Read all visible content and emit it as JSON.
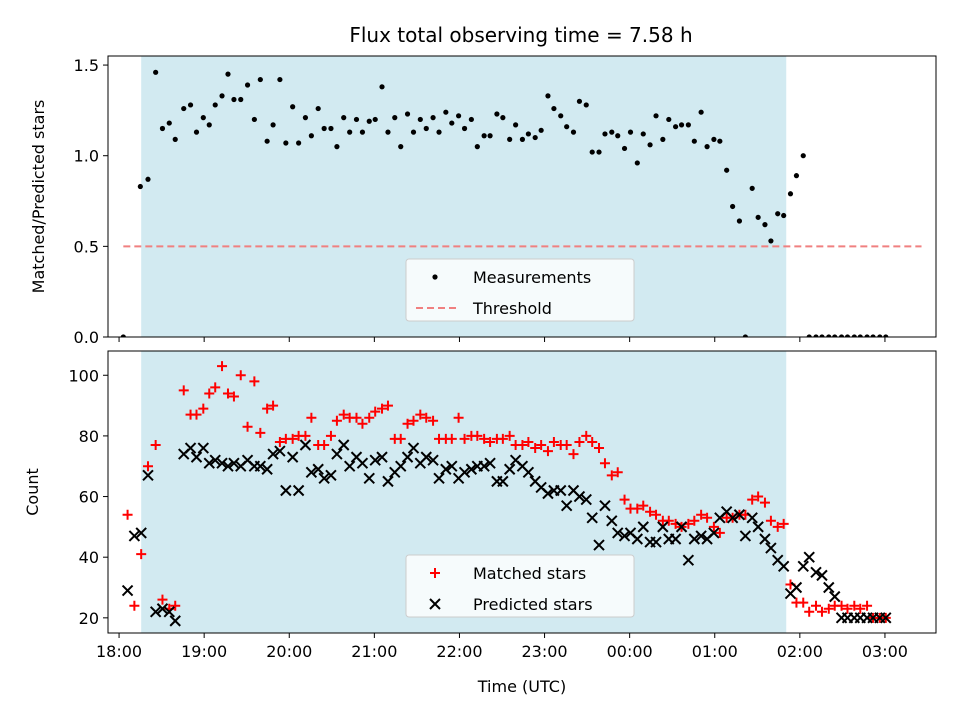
{
  "title": "Flux total observing time = 7.58 h",
  "chart_data": [
    {
      "type": "scatter",
      "ylabel": "Matched/Predicted stars",
      "ylim": [
        0,
        1.55
      ],
      "xlim_hours": [
        17.87,
        27.6
      ],
      "yticks": [
        0.0,
        0.5,
        1.0,
        1.5
      ],
      "ytick_labels": [
        "0.0",
        "0.5",
        "1.0",
        "1.5"
      ],
      "shaded_span_hours": [
        18.26,
        25.84
      ],
      "shaded_color": "#add8e6",
      "threshold": {
        "value": 0.5,
        "x_hours": [
          18.05,
          27.43
        ],
        "color": "#f08080"
      },
      "legend": {
        "placement": "lower center",
        "entries": [
          "Measurements",
          "Threshold"
        ]
      },
      "series": [
        {
          "name": "Measurements",
          "color": "#000000",
          "marker": "dot",
          "x_hours": [
            18.05,
            18.25,
            18.34,
            18.43,
            18.51,
            18.59,
            18.66,
            18.76,
            18.84,
            18.91,
            18.99,
            19.06,
            19.13,
            19.21,
            19.28,
            19.35,
            19.43,
            19.51,
            19.59,
            19.66,
            19.74,
            19.81,
            19.89,
            19.96,
            20.04,
            20.11,
            20.19,
            20.26,
            20.34,
            20.41,
            20.49,
            20.56,
            20.64,
            20.71,
            20.79,
            20.86,
            20.94,
            21.01,
            21.09,
            21.16,
            21.24,
            21.31,
            21.39,
            21.46,
            21.54,
            21.61,
            21.69,
            21.76,
            21.84,
            21.91,
            21.99,
            22.06,
            22.14,
            22.21,
            22.29,
            22.36,
            22.44,
            22.51,
            22.59,
            22.66,
            22.74,
            22.81,
            22.89,
            22.96,
            23.04,
            23.11,
            23.19,
            23.26,
            23.34,
            23.41,
            23.49,
            23.56,
            23.64,
            23.71,
            23.79,
            23.86,
            23.94,
            24.01,
            24.09,
            24.16,
            24.24,
            24.31,
            24.39,
            24.46,
            24.54,
            24.61,
            24.69,
            24.76,
            24.84,
            24.91,
            24.99,
            25.06,
            25.14,
            25.21,
            25.29,
            25.36,
            25.44,
            25.51,
            25.59,
            25.66,
            25.74,
            25.81,
            25.89,
            25.96,
            26.04,
            26.11,
            26.19,
            26.26,
            26.34,
            26.41,
            26.49,
            26.56,
            26.64,
            26.71,
            26.79,
            26.86,
            26.94,
            27.01
          ],
          "y": [
            0.0,
            0.83,
            0.87,
            1.46,
            1.15,
            1.18,
            1.09,
            1.26,
            1.28,
            1.13,
            1.21,
            1.17,
            1.28,
            1.33,
            1.45,
            1.31,
            1.31,
            1.39,
            1.2,
            1.42,
            1.08,
            1.17,
            1.42,
            1.07,
            1.27,
            1.07,
            1.21,
            1.11,
            1.26,
            1.15,
            1.15,
            1.05,
            1.21,
            1.13,
            1.2,
            1.13,
            1.19,
            1.2,
            1.38,
            1.13,
            1.21,
            1.05,
            1.23,
            1.13,
            1.2,
            1.15,
            1.21,
            1.13,
            1.24,
            1.18,
            1.22,
            1.15,
            1.2,
            1.05,
            1.11,
            1.11,
            1.23,
            1.21,
            1.09,
            1.17,
            1.09,
            1.12,
            1.1,
            1.14,
            1.33,
            1.26,
            1.22,
            1.16,
            1.13,
            1.3,
            1.28,
            1.02,
            1.02,
            1.12,
            1.13,
            1.11,
            1.04,
            1.13,
            0.96,
            1.12,
            1.06,
            1.22,
            1.09,
            1.2,
            1.16,
            1.17,
            1.17,
            1.08,
            1.24,
            1.05,
            1.09,
            1.08,
            0.92,
            0.72,
            0.64,
            0.0,
            0.82,
            0.66,
            0.62,
            0.53,
            0.68,
            0.67,
            0.79,
            0.89,
            1.0,
            0.0,
            0.0,
            0.0,
            0.0,
            0.0,
            0.0,
            0.0,
            0.0,
            0.0,
            0.0,
            0.0,
            0.0,
            0.0
          ]
        }
      ]
    },
    {
      "type": "scatter",
      "xlabel": "Time (UTC)",
      "ylabel": "Count",
      "ylim": [
        15,
        108
      ],
      "xlim_hours": [
        17.87,
        27.6
      ],
      "yticks": [
        20,
        40,
        60,
        80,
        100
      ],
      "ytick_labels": [
        "20",
        "40",
        "60",
        "80",
        "100"
      ],
      "xticks_hours": [
        18,
        19,
        20,
        21,
        22,
        23,
        24,
        25,
        26,
        27
      ],
      "xtick_labels": [
        "18:00",
        "19:00",
        "20:00",
        "21:00",
        "22:00",
        "23:00",
        "00:00",
        "01:00",
        "02:00",
        "03:00"
      ],
      "shaded_span_hours": [
        18.26,
        25.84
      ],
      "shaded_color": "#add8e6",
      "legend": {
        "placement": "lower center",
        "entries": [
          "Matched stars",
          "Predicted stars"
        ]
      },
      "series": [
        {
          "name": "Matched stars",
          "color": "#ff0000",
          "marker": "plus",
          "x_hours": [
            18.1,
            18.18,
            18.26,
            18.34,
            18.43,
            18.51,
            18.59,
            18.66,
            18.76,
            18.84,
            18.91,
            18.99,
            19.06,
            19.13,
            19.21,
            19.28,
            19.35,
            19.43,
            19.51,
            19.59,
            19.66,
            19.74,
            19.81,
            19.89,
            19.96,
            20.04,
            20.11,
            20.19,
            20.26,
            20.34,
            20.41,
            20.49,
            20.56,
            20.64,
            20.71,
            20.79,
            20.86,
            20.94,
            21.01,
            21.09,
            21.16,
            21.24,
            21.31,
            21.39,
            21.46,
            21.54,
            21.61,
            21.69,
            21.76,
            21.84,
            21.91,
            21.99,
            22.06,
            22.14,
            22.21,
            22.29,
            22.36,
            22.44,
            22.51,
            22.59,
            22.66,
            22.74,
            22.81,
            22.89,
            22.96,
            23.04,
            23.11,
            23.19,
            23.26,
            23.34,
            23.41,
            23.49,
            23.56,
            23.64,
            23.71,
            23.79,
            23.86,
            23.94,
            24.01,
            24.09,
            24.16,
            24.24,
            24.31,
            24.39,
            24.46,
            24.54,
            24.61,
            24.69,
            24.76,
            24.84,
            24.91,
            24.99,
            25.06,
            25.14,
            25.21,
            25.29,
            25.36,
            25.44,
            25.51,
            25.59,
            25.66,
            25.74,
            25.81,
            25.89,
            25.96,
            26.04,
            26.11,
            26.19,
            26.26,
            26.34,
            26.41,
            26.49,
            26.56,
            26.64,
            26.71,
            26.79,
            26.86,
            26.94,
            27.01
          ],
          "y": [
            54,
            24,
            41,
            70,
            77,
            26,
            23,
            24,
            95,
            87,
            87,
            89,
            94,
            96,
            103,
            94,
            93,
            100,
            83,
            98,
            81,
            89,
            90,
            78,
            79,
            79,
            80,
            80,
            86,
            77,
            77,
            80,
            85,
            87,
            86,
            86,
            84,
            86,
            88,
            89,
            90,
            79,
            79,
            84,
            85,
            87,
            86,
            85,
            79,
            79,
            79,
            86,
            79,
            80,
            80,
            79,
            78,
            79,
            79,
            80,
            77,
            77,
            78,
            76,
            77,
            75,
            78,
            77,
            77,
            74,
            78,
            80,
            78,
            76,
            71,
            67,
            68,
            59,
            56,
            56,
            57,
            55,
            54,
            52,
            52,
            51,
            50,
            51,
            52,
            54,
            53,
            50,
            48,
            53,
            53,
            54,
            54,
            59,
            60,
            58,
            52,
            50,
            51,
            31,
            25,
            25,
            22,
            24,
            22,
            23,
            24,
            24,
            23,
            24,
            23,
            24,
            20,
            20,
            20
          ]
        },
        {
          "name": "Predicted stars",
          "color": "#000000",
          "marker": "x",
          "x_hours": [
            18.1,
            18.18,
            18.26,
            18.34,
            18.43,
            18.51,
            18.59,
            18.66,
            18.76,
            18.84,
            18.91,
            18.99,
            19.06,
            19.13,
            19.21,
            19.28,
            19.35,
            19.43,
            19.51,
            19.59,
            19.66,
            19.74,
            19.81,
            19.89,
            19.96,
            20.04,
            20.11,
            20.19,
            20.26,
            20.34,
            20.41,
            20.49,
            20.56,
            20.64,
            20.71,
            20.79,
            20.86,
            20.94,
            21.01,
            21.09,
            21.16,
            21.24,
            21.31,
            21.39,
            21.46,
            21.54,
            21.61,
            21.69,
            21.76,
            21.84,
            21.91,
            21.99,
            22.06,
            22.14,
            22.21,
            22.29,
            22.36,
            22.44,
            22.51,
            22.59,
            22.66,
            22.74,
            22.81,
            22.89,
            22.96,
            23.04,
            23.11,
            23.19,
            23.26,
            23.34,
            23.41,
            23.49,
            23.56,
            23.64,
            23.71,
            23.79,
            23.86,
            23.94,
            24.01,
            24.09,
            24.16,
            24.24,
            24.31,
            24.39,
            24.46,
            24.54,
            24.61,
            24.69,
            24.76,
            24.84,
            24.91,
            24.99,
            25.06,
            25.14,
            25.21,
            25.29,
            25.36,
            25.44,
            25.51,
            25.59,
            25.66,
            25.74,
            25.81,
            25.89,
            25.96,
            26.04,
            26.11,
            26.19,
            26.26,
            26.34,
            26.41,
            26.49,
            26.56,
            26.64,
            26.71,
            26.79,
            26.86,
            26.94,
            27.01
          ],
          "y": [
            29,
            47,
            48,
            67,
            22,
            23,
            22,
            19,
            74,
            76,
            73,
            76,
            71,
            72,
            71,
            70,
            71,
            70,
            72,
            70,
            70,
            69,
            74,
            75,
            62,
            73,
            62,
            77,
            68,
            69,
            66,
            67,
            74,
            77,
            70,
            73,
            71,
            66,
            72,
            73,
            65,
            68,
            70,
            73,
            76,
            71,
            73,
            72,
            66,
            69,
            70,
            66,
            68,
            69,
            70,
            70,
            71,
            65,
            65,
            69,
            72,
            70,
            68,
            65,
            63,
            61,
            62,
            62,
            57,
            62,
            60,
            59,
            53,
            44,
            57,
            52,
            48,
            47,
            48,
            46,
            50,
            45,
            45,
            50,
            46,
            46,
            50,
            39,
            46,
            47,
            46,
            48,
            53,
            55,
            53,
            54,
            47,
            53,
            50,
            46,
            43,
            39,
            37,
            28,
            30,
            37,
            40,
            35,
            34,
            30,
            27,
            20,
            20,
            20,
            20,
            20,
            20,
            20,
            20
          ]
        }
      ]
    }
  ]
}
